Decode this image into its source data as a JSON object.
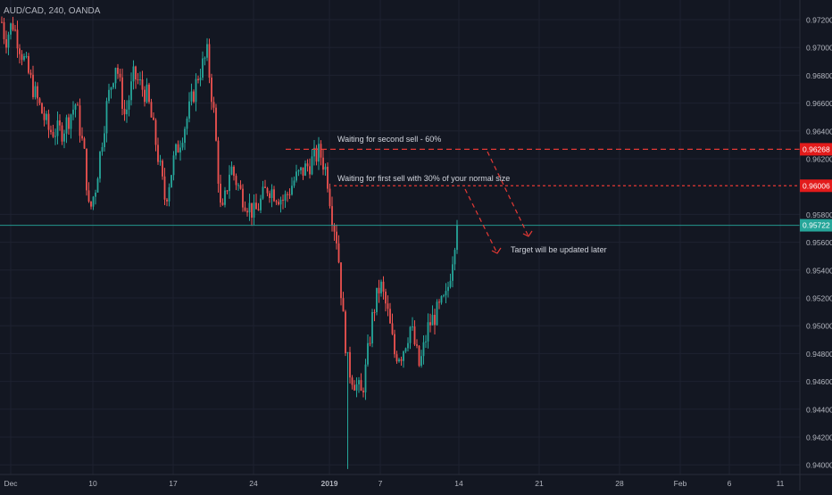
{
  "header": {
    "symbol_label": "AUD/CAD, 240, OANDA"
  },
  "colors": {
    "background": "#131722",
    "grid": "#1e2230",
    "axis_text": "#b2b5be",
    "bull": "#26a69a",
    "bear": "#ef5350",
    "level_line": "#e53935",
    "current_price_bg": "#26a69a",
    "level_badge_bg": "#e31b1b",
    "annotation_text": "#d1d4dc"
  },
  "chart_data": {
    "type": "candlestick",
    "title": "AUD/CAD, 240, OANDA",
    "y_axis": {
      "side": "right",
      "ylim": [
        0.9395,
        0.9735
      ],
      "ticks": [
        "0.97200",
        "0.97000",
        "0.96800",
        "0.96600",
        "0.96400",
        "0.96200",
        "0.95800",
        "0.95600",
        "0.95400",
        "0.95200",
        "0.95000",
        "0.94800",
        "0.94600",
        "0.94400",
        "0.94200",
        "0.94000"
      ]
    },
    "x_axis": {
      "tick_labels": [
        "Dec",
        "10",
        "17",
        "24",
        "2019",
        "7",
        "14",
        "21",
        "28",
        "Feb",
        "6",
        "11"
      ],
      "bold_labels": [
        "2019"
      ]
    },
    "grid": true,
    "trend_overview": [
      {
        "period": "Dec 3 - Dec 10",
        "move": "down",
        "from": 0.9725,
        "to": 0.957
      },
      {
        "period": "Dec 10 - Dec 20",
        "move": "up",
        "from": 0.957,
        "to": 0.97
      },
      {
        "period": "Dec 20 - Dec 24",
        "move": "down",
        "from": 0.97,
        "to": 0.957
      },
      {
        "period": "Dec 24 - Jan 1",
        "move": "sideways",
        "from": 0.957,
        "to": 0.962
      },
      {
        "period": "Jan 2",
        "move": "flash crash",
        "low": 0.9395
      },
      {
        "period": "Jan 3 - Jan 14",
        "move": "up",
        "from": 0.944,
        "to": 0.9575
      }
    ],
    "current_price": "0.95722",
    "levels": [
      {
        "price": "0.96268",
        "style": "dashed",
        "label": "Waiting for second sell - 60%"
      },
      {
        "price": "0.96006",
        "style": "dashed",
        "label": "Waiting for first sell with 30% of your normal size"
      }
    ],
    "annotations": [
      {
        "text": "Target will be updated later"
      }
    ]
  }
}
